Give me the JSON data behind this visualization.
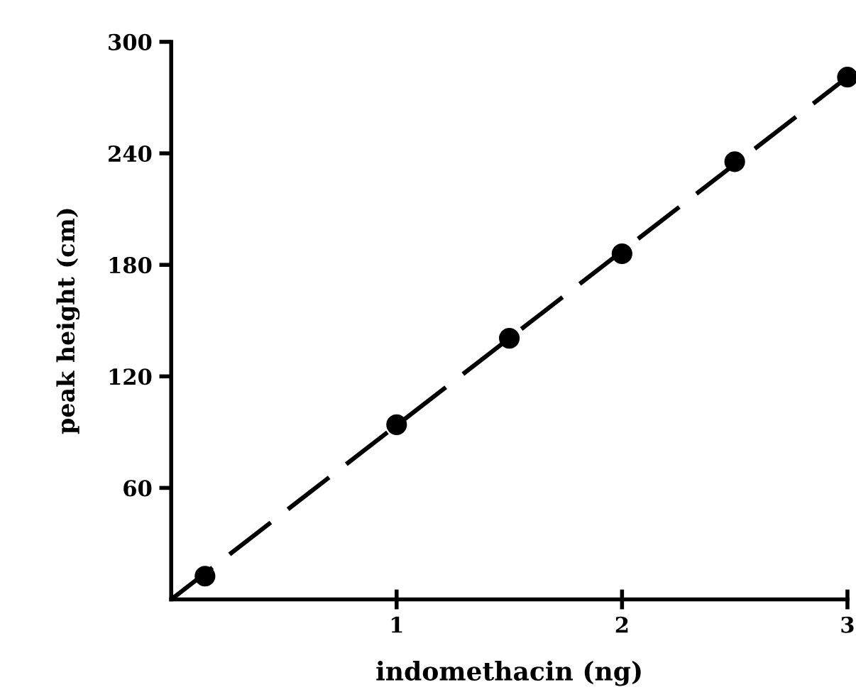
{
  "chart_data": {
    "type": "scatter",
    "xlabel": "indomethacin (ng)",
    "ylabel": "peak height (cm)",
    "xlim": [
      0,
      3
    ],
    "ylim": [
      0,
      300
    ],
    "xticks": [
      1,
      2,
      3
    ],
    "yticks": [
      60,
      120,
      180,
      240,
      300
    ],
    "grid": false,
    "legend": false,
    "marker": "circle",
    "series": [
      {
        "color": "#000000",
        "x": [
          0.15,
          1.0,
          1.5,
          2.0,
          2.5,
          3.0
        ],
        "values": [
          12.5,
          94,
          140.5,
          186,
          235.5,
          281
        ]
      },
      {
        "type": "line",
        "color": "#000000",
        "line_style": "dashed",
        "marker": "none",
        "x": [
          0,
          3
        ],
        "values": [
          0,
          281
        ]
      }
    ]
  }
}
